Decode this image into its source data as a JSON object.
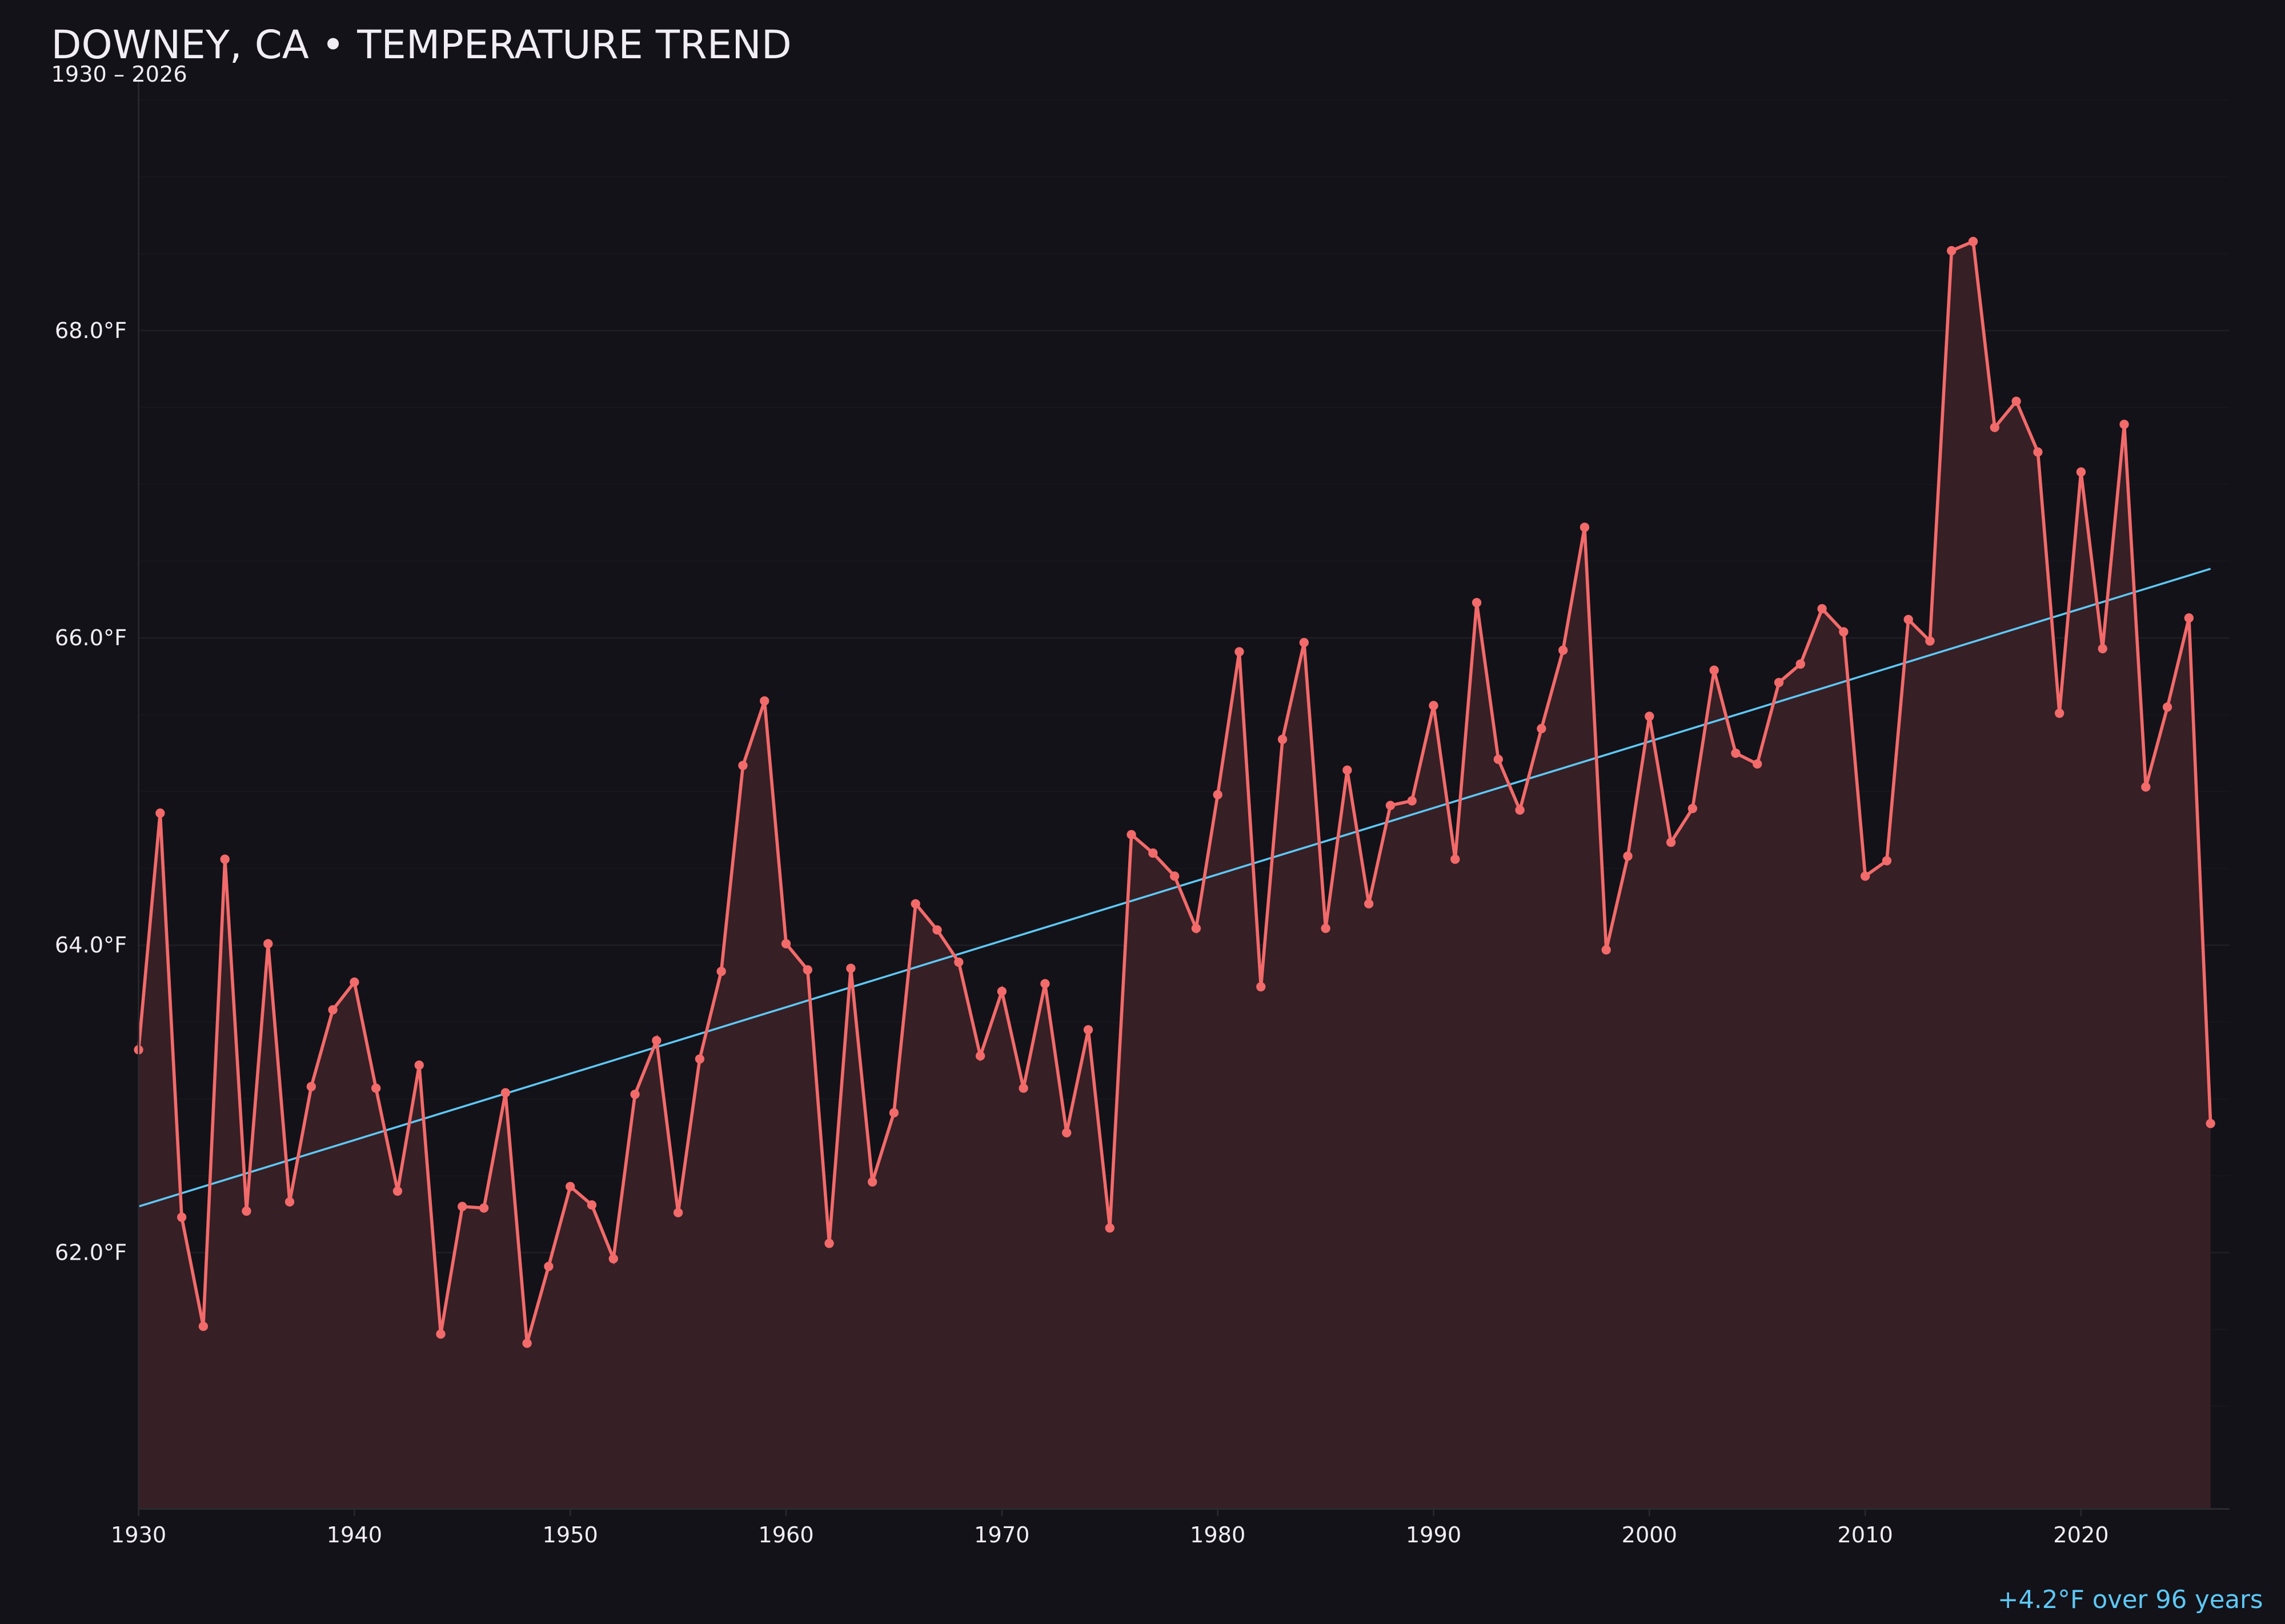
{
  "chart_data": {
    "type": "line",
    "title": "DOWNEY, CA • TEMPERATURE TREND",
    "subtitle": "1930 – 2026",
    "annotation": "+4.2°F over 96 years",
    "xlabel": "",
    "ylabel": "",
    "xlim": [
      1930,
      2027
    ],
    "ylim": [
      60.33,
      69.7
    ],
    "grid": true,
    "x_ticks": [
      "1930",
      "1940",
      "1950",
      "1960",
      "1970",
      "1980",
      "1990",
      "2000",
      "2010",
      "2020"
    ],
    "y_ticks": [
      "62.0°F",
      "64.0°F",
      "66.0°F",
      "68.0°F"
    ],
    "y_tick_values": [
      62,
      64,
      66,
      68
    ],
    "x": [
      1930,
      1931,
      1932,
      1933,
      1934,
      1935,
      1936,
      1937,
      1938,
      1939,
      1940,
      1941,
      1942,
      1943,
      1944,
      1945,
      1946,
      1947,
      1948,
      1949,
      1950,
      1951,
      1952,
      1953,
      1954,
      1955,
      1956,
      1957,
      1958,
      1959,
      1960,
      1961,
      1962,
      1963,
      1964,
      1965,
      1966,
      1967,
      1968,
      1969,
      1970,
      1971,
      1972,
      1973,
      1974,
      1975,
      1976,
      1977,
      1978,
      1979,
      1980,
      1981,
      1982,
      1983,
      1984,
      1985,
      1986,
      1987,
      1988,
      1989,
      1990,
      1991,
      1992,
      1993,
      1994,
      1995,
      1996,
      1997,
      1998,
      1999,
      2000,
      2001,
      2002,
      2003,
      2004,
      2005,
      2006,
      2007,
      2008,
      2009,
      2010,
      2011,
      2012,
      2013,
      2014,
      2015,
      2016,
      2017,
      2018,
      2019,
      2020,
      2021,
      2022,
      2023,
      2024,
      2025,
      2026
    ],
    "values": [
      63.32,
      64.86,
      62.23,
      61.52,
      64.56,
      62.27,
      64.01,
      62.33,
      63.08,
      63.58,
      63.76,
      63.07,
      62.4,
      63.22,
      61.47,
      62.3,
      62.29,
      63.04,
      61.41,
      61.91,
      62.43,
      62.31,
      61.96,
      63.03,
      63.38,
      62.26,
      63.26,
      63.83,
      65.17,
      65.59,
      64.01,
      63.84,
      62.06,
      63.85,
      62.46,
      62.91,
      64.27,
      64.1,
      63.89,
      63.28,
      63.7,
      63.07,
      63.75,
      62.78,
      63.45,
      62.16,
      64.72,
      64.6,
      64.45,
      64.11,
      64.98,
      65.91,
      63.73,
      65.34,
      65.97,
      64.11,
      65.14,
      64.27,
      64.91,
      64.94,
      65.56,
      64.56,
      66.23,
      65.21,
      64.88,
      65.41,
      65.92,
      66.72,
      63.97,
      64.58,
      65.49,
      64.67,
      64.89,
      65.79,
      65.25,
      65.18,
      65.71,
      65.83,
      66.19,
      66.04,
      64.45,
      64.55,
      66.12,
      65.98,
      68.52,
      68.58,
      67.37,
      67.54,
      67.21,
      65.51,
      67.08,
      65.93,
      67.39,
      65.03,
      65.55,
      66.13,
      62.84
    ],
    "trend": {
      "x": [
        1930,
        2026
      ],
      "y": [
        62.3,
        66.45
      ]
    },
    "colors": {
      "background": "#131218",
      "line": "#f26a6a",
      "fill": "#361f25",
      "trend": "#5ec8f5",
      "text": "#f0eef4",
      "grid": "#1f1e25"
    }
  }
}
